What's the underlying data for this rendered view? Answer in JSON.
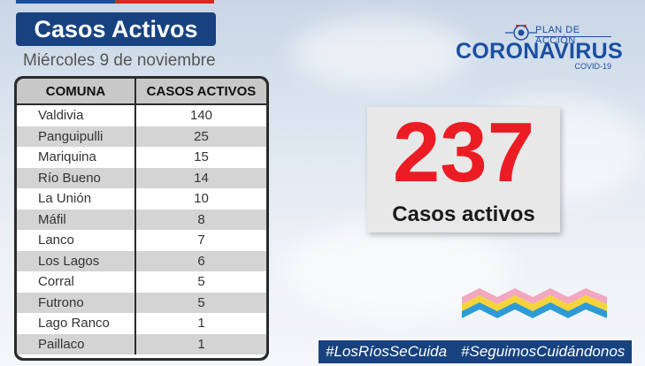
{
  "header": {
    "title": "Casos Activos",
    "date": "Miércoles 9 de noviembre"
  },
  "table": {
    "columns": [
      "COMUNA",
      "CASOS ACTIVOS"
    ],
    "rows": [
      {
        "comuna": "Valdivia",
        "casos": "140"
      },
      {
        "comuna": "Panguipulli",
        "casos": "25"
      },
      {
        "comuna": "Mariquina",
        "casos": "15"
      },
      {
        "comuna": "Río Bueno",
        "casos": "14"
      },
      {
        "comuna": "La Unión",
        "casos": "10"
      },
      {
        "comuna": "Máfil",
        "casos": "8"
      },
      {
        "comuna": "Lanco",
        "casos": "7"
      },
      {
        "comuna": "Los Lagos",
        "casos": "6"
      },
      {
        "comuna": "Corral",
        "casos": "5"
      },
      {
        "comuna": "Futrono",
        "casos": "5"
      },
      {
        "comuna": "Lago Ranco",
        "casos": "1"
      },
      {
        "comuna": "Paillaco",
        "casos": "1"
      }
    ]
  },
  "logo": {
    "plan": "PLAN DE ACCIÓN",
    "name": "CORONAVIRUS",
    "sub": "COVID-19"
  },
  "summary": {
    "total": "237",
    "label": "Casos activos"
  },
  "hashtags": [
    "#LosRíosSeCuida",
    "#SeguimosCuidándonos"
  ],
  "colors": {
    "navy": "#17427f",
    "brand_blue": "#1a4fa0",
    "red": "#ec1c24",
    "wave_pink": "#f4a7c0",
    "wave_yellow": "#f5d33a",
    "wave_blue": "#2e9bd6"
  }
}
